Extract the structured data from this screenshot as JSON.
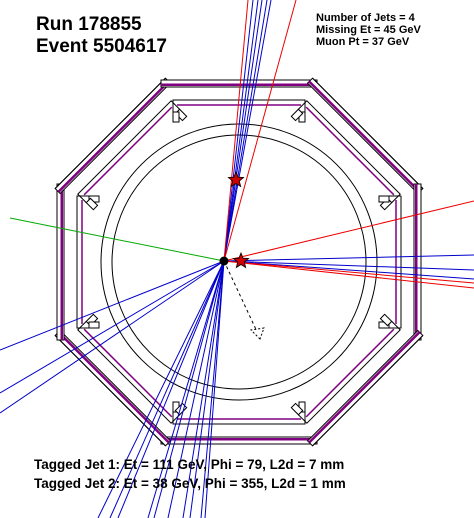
{
  "header": {
    "run": "Run 178855",
    "event": "Event 5504617"
  },
  "summary": {
    "jets": "Number of Jets = 4",
    "missing_et": "Missing Et = 45 GeV",
    "muon_pt": "Muon Pt = 37 GeV"
  },
  "tagged_jets": [
    "Tagged Jet 1: Et = 111 GeV, Phi = 79,   L2d = 7 mm",
    "Tagged Jet 2: Et = 38 GeV,   Phi = 355, L2d = 1 mm"
  ],
  "colors": {
    "tracks": "#0000cc",
    "jet_tracks": "#ee0000",
    "muon_track": "#00aa00",
    "calorimeter": "#800080",
    "missing_et": "#000000",
    "vertex_marker": "#cc0000"
  }
}
